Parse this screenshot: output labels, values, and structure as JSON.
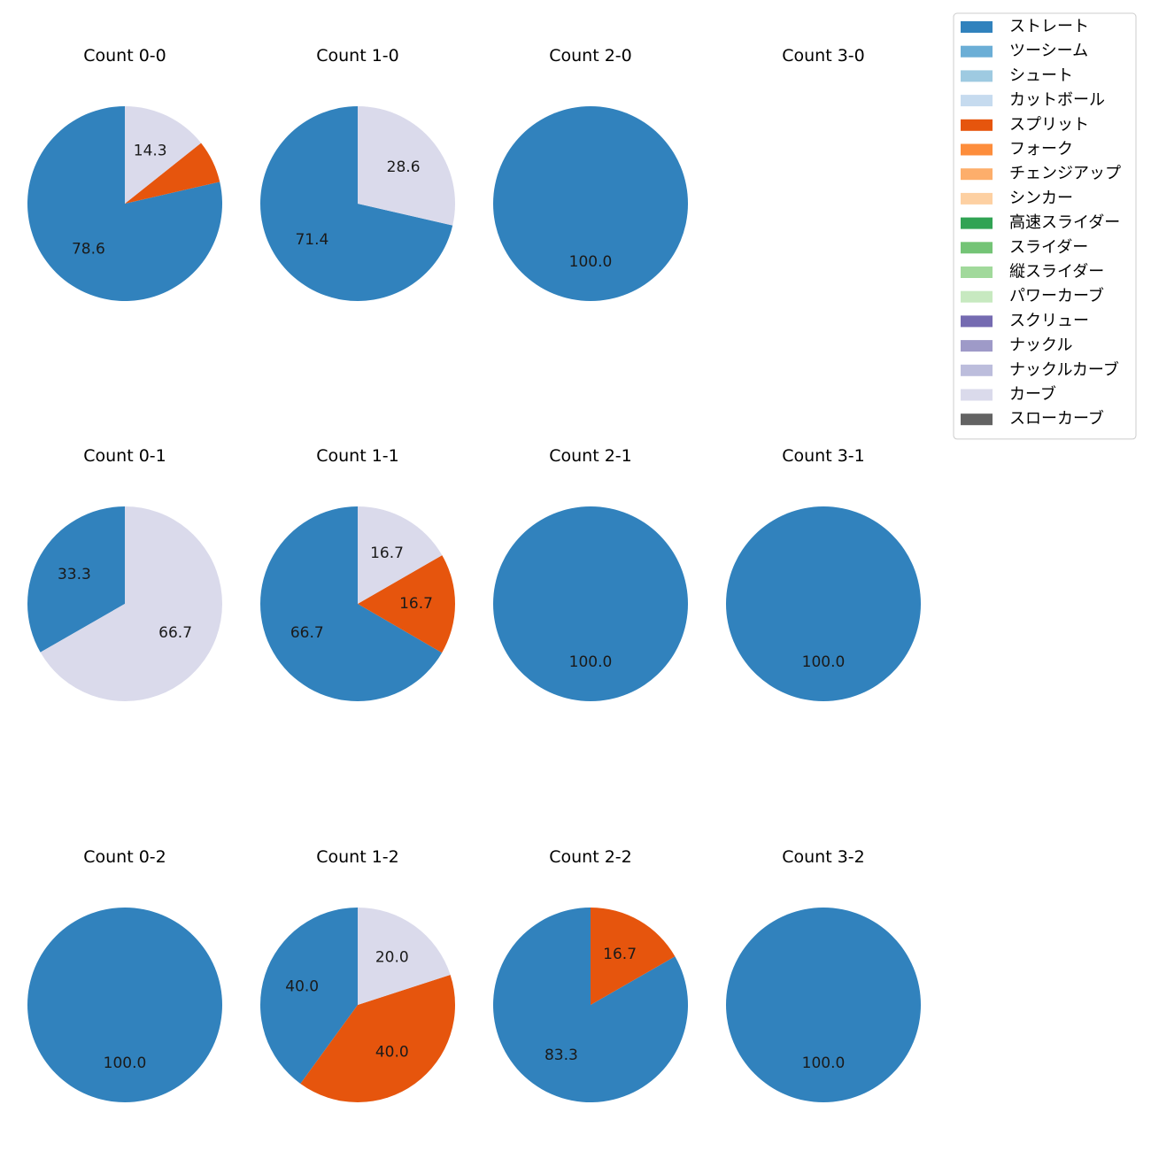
{
  "chart_data": {
    "type": "pie",
    "legend": {
      "placement": "top-right",
      "entries": [
        {
          "name": "ストレート",
          "color": "#3182bd"
        },
        {
          "name": "ツーシーム",
          "color": "#6baed6"
        },
        {
          "name": "シュート",
          "color": "#9ecae1"
        },
        {
          "name": "カットボール",
          "color": "#c6dbef"
        },
        {
          "name": "スプリット",
          "color": "#e6550d"
        },
        {
          "name": "フォーク",
          "color": "#fd8d3c"
        },
        {
          "name": "チェンジアップ",
          "color": "#fdae6b"
        },
        {
          "name": "シンカー",
          "color": "#fdd0a2"
        },
        {
          "name": "高速スライダー",
          "color": "#31a354"
        },
        {
          "name": "スライダー",
          "color": "#74c476"
        },
        {
          "name": "縦スライダー",
          "color": "#a1d99b"
        },
        {
          "name": "パワーカーブ",
          "color": "#c7e9c0"
        },
        {
          "name": "スクリュー",
          "color": "#756bb1"
        },
        {
          "name": "ナックル",
          "color": "#9e9ac8"
        },
        {
          "name": "ナックルカーブ",
          "color": "#bcbddc"
        },
        {
          "name": "カーブ",
          "color": "#dadaeb"
        },
        {
          "name": "スローカーブ",
          "color": "#636363"
        }
      ]
    },
    "pies": [
      {
        "title": "Count 0-0",
        "slices": [
          {
            "pitch": "ストレート",
            "value": 78.6,
            "label": "78.6"
          },
          {
            "pitch": "スプリット",
            "value": 7.1,
            "label": ""
          },
          {
            "pitch": "カーブ",
            "value": 14.3,
            "label": "14.3"
          }
        ]
      },
      {
        "title": "Count 1-0",
        "slices": [
          {
            "pitch": "ストレート",
            "value": 71.4,
            "label": "71.4"
          },
          {
            "pitch": "カーブ",
            "value": 28.6,
            "label": "28.6"
          }
        ]
      },
      {
        "title": "Count 2-0",
        "slices": [
          {
            "pitch": "ストレート",
            "value": 100.0,
            "label": "100.0"
          }
        ]
      },
      {
        "title": "Count 3-0",
        "slices": []
      },
      {
        "title": "Count 0-1",
        "slices": [
          {
            "pitch": "ストレート",
            "value": 33.3,
            "label": "33.3"
          },
          {
            "pitch": "カーブ",
            "value": 66.7,
            "label": "66.7"
          }
        ]
      },
      {
        "title": "Count 1-1",
        "slices": [
          {
            "pitch": "ストレート",
            "value": 66.7,
            "label": "66.7"
          },
          {
            "pitch": "スプリット",
            "value": 16.7,
            "label": "16.7"
          },
          {
            "pitch": "カーブ",
            "value": 16.7,
            "label": "16.7"
          }
        ]
      },
      {
        "title": "Count 2-1",
        "slices": [
          {
            "pitch": "ストレート",
            "value": 100.0,
            "label": "100.0"
          }
        ]
      },
      {
        "title": "Count 3-1",
        "slices": [
          {
            "pitch": "ストレート",
            "value": 100.0,
            "label": "100.0"
          }
        ]
      },
      {
        "title": "Count 0-2",
        "slices": [
          {
            "pitch": "ストレート",
            "value": 100.0,
            "label": "100.0"
          }
        ]
      },
      {
        "title": "Count 1-2",
        "slices": [
          {
            "pitch": "ストレート",
            "value": 40.0,
            "label": "40.0"
          },
          {
            "pitch": "スプリット",
            "value": 40.0,
            "label": "40.0"
          },
          {
            "pitch": "カーブ",
            "value": 20.0,
            "label": "20.0"
          }
        ]
      },
      {
        "title": "Count 2-2",
        "slices": [
          {
            "pitch": "ストレート",
            "value": 83.3,
            "label": "83.3"
          },
          {
            "pitch": "スプリット",
            "value": 16.7,
            "label": "16.7"
          }
        ]
      },
      {
        "title": "Count 3-2",
        "slices": [
          {
            "pitch": "ストレート",
            "value": 100.0,
            "label": "100.0"
          }
        ]
      }
    ]
  }
}
